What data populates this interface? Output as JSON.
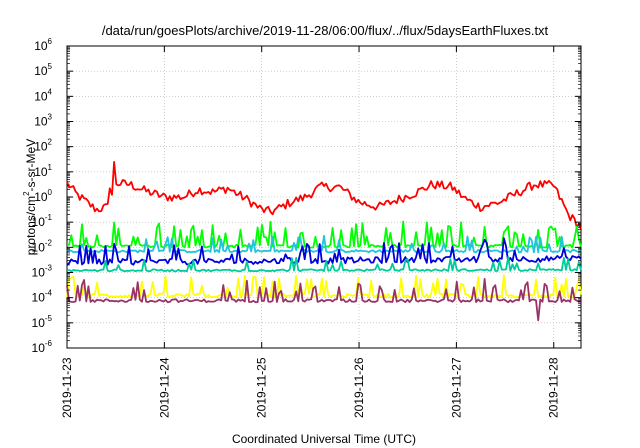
{
  "chart_data": {
    "type": "line",
    "title": "/data/run/goesPlots/archive/2019-11-28/06:00/flux/../flux/5daysEarthFluxes.txt",
    "xlabel": "Coordinated Universal Time (UTC)",
    "ylabel": "protons/cm²-s-sr-MeV",
    "ylabel_parts": {
      "pre": "protons/cm",
      "sup": "2",
      "post": "-s-sr-MeV"
    },
    "yscale": "log",
    "ylim_exp": [
      -6,
      6
    ],
    "ytick_exponents": [
      "-6",
      "-5",
      "-4",
      "-3",
      "-2",
      "-1",
      "0",
      "1",
      "2",
      "3",
      "4",
      "5",
      "6"
    ],
    "ytick_base": "10",
    "xlim_days": [
      0,
      5.28
    ],
    "x_ticks": [
      {
        "day": 0,
        "label": "2019-11-23"
      },
      {
        "day": 1,
        "label": "2019-11-24"
      },
      {
        "day": 2,
        "label": "2019-11-25"
      },
      {
        "day": 3,
        "label": "2019-11-26"
      },
      {
        "day": 4,
        "label": "2019-11-27"
      },
      {
        "day": 5,
        "label": "2019-11-28"
      }
    ],
    "grid": true,
    "series": [
      {
        "color": "#ff0000",
        "base": [
          [
            0,
            0.55
          ],
          [
            0.1,
            0.1
          ],
          [
            0.3,
            -0.5
          ],
          [
            0.42,
            -0.4
          ],
          [
            0.5,
            0.55
          ],
          [
            0.65,
            0.5
          ],
          [
            0.8,
            0.25
          ],
          [
            1.0,
            0.0
          ],
          [
            1.2,
            0.0
          ],
          [
            1.35,
            0.3
          ],
          [
            1.5,
            0.2
          ],
          [
            1.65,
            0.35
          ],
          [
            1.85,
            -0.1
          ],
          [
            2.0,
            -0.5
          ],
          [
            2.1,
            -0.6
          ],
          [
            2.3,
            -0.2
          ],
          [
            2.45,
            0.0
          ],
          [
            2.6,
            0.4
          ],
          [
            2.8,
            0.4
          ],
          [
            3.0,
            -0.2
          ],
          [
            3.2,
            -0.4
          ],
          [
            3.4,
            -0.1
          ],
          [
            3.6,
            0.2
          ],
          [
            3.75,
            0.5
          ],
          [
            3.95,
            0.4
          ],
          [
            4.1,
            -0.1
          ],
          [
            4.25,
            -0.4
          ],
          [
            4.45,
            -0.2
          ],
          [
            4.65,
            0.2
          ],
          [
            4.8,
            0.5
          ],
          [
            5.0,
            0.45
          ],
          [
            5.15,
            -0.7
          ],
          [
            5.28,
            -1.2
          ]
        ],
        "noise": 0.18,
        "spikes": [
          [
            0.49,
            0.95
          ],
          [
            0.45,
            0.65
          ]
        ]
      },
      {
        "color": "#00ff00",
        "base": [
          [
            0,
            -1.95
          ],
          [
            5.28,
            -1.95
          ]
        ],
        "noise": 0.06,
        "spike_rate": 0.22,
        "spike_amp": [
          0.3,
          0.95
        ]
      },
      {
        "color": "#22c4dd",
        "base": [
          [
            0,
            -2.15
          ],
          [
            5.28,
            -2.15
          ]
        ],
        "noise": 0.05,
        "spike_rate": 0.12,
        "spike_amp": [
          0.2,
          0.6
        ]
      },
      {
        "color": "#0000dd",
        "base": [
          [
            0,
            -2.6
          ],
          [
            5.28,
            -2.45
          ]
        ],
        "noise": 0.12,
        "spike_rate": 0.15,
        "spike_amp": [
          0.3,
          0.75
        ]
      },
      {
        "color": "#00cc99",
        "base": [
          [
            0,
            -2.92
          ],
          [
            5.28,
            -2.9
          ]
        ],
        "noise": 0.04,
        "spike_rate": 0.1,
        "spike_amp": [
          0.2,
          0.5
        ]
      },
      {
        "color": "#ffff00",
        "base": [
          [
            0,
            -3.92
          ],
          [
            5.28,
            -3.92
          ]
        ],
        "noise": 0.08,
        "spike_rate": 0.2,
        "spike_amp": [
          0.3,
          0.8
        ]
      },
      {
        "color": "#993366",
        "base": [
          [
            0,
            -4.12
          ],
          [
            5.28,
            -4.12
          ]
        ],
        "noise": 0.06,
        "spike_rate": 0.18,
        "spike_amp": [
          0.3,
          0.85
        ],
        "dip": [
          4.85,
          -4.9
        ]
      }
    ]
  }
}
